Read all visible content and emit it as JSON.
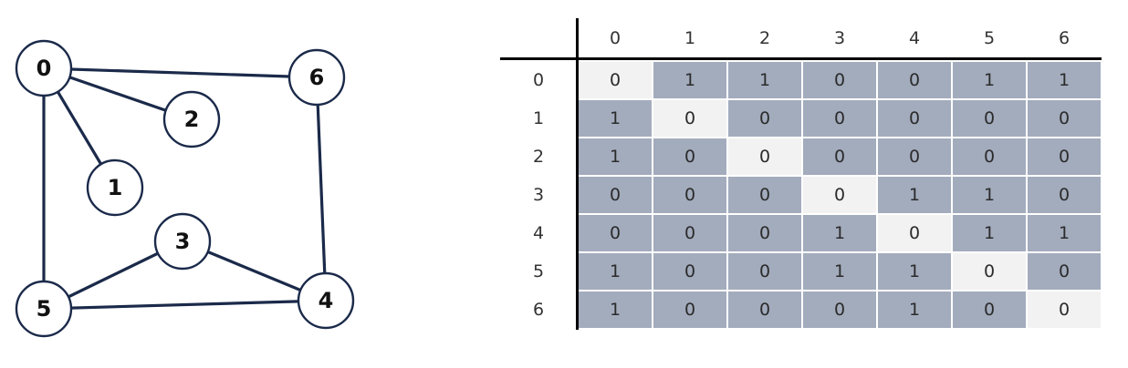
{
  "graph": {
    "nodes": [
      "0",
      "1",
      "2",
      "3",
      "4",
      "5",
      "6"
    ],
    "edges": [
      [
        "0",
        "6"
      ],
      [
        "0",
        "2"
      ],
      [
        "0",
        "1"
      ],
      [
        "0",
        "5"
      ],
      [
        "6",
        "4"
      ],
      [
        "3",
        "5"
      ],
      [
        "3",
        "4"
      ],
      [
        "5",
        "4"
      ]
    ],
    "colors": {
      "edge": "#1b2a4a",
      "node_fill": "#ffffff"
    }
  },
  "matrix": {
    "col_headers": [
      "0",
      "1",
      "2",
      "3",
      "4",
      "5",
      "6"
    ],
    "row_headers": [
      "0",
      "1",
      "2",
      "3",
      "4",
      "5",
      "6"
    ],
    "values": [
      [
        "0",
        "1",
        "1",
        "0",
        "0",
        "1",
        "1"
      ],
      [
        "1",
        "0",
        "0",
        "0",
        "0",
        "0",
        "0"
      ],
      [
        "1",
        "0",
        "0",
        "0",
        "0",
        "0",
        "0"
      ],
      [
        "0",
        "0",
        "0",
        "0",
        "1",
        "1",
        "0"
      ],
      [
        "0",
        "0",
        "0",
        "1",
        "0",
        "1",
        "1"
      ],
      [
        "1",
        "0",
        "0",
        "1",
        "1",
        "0",
        "0"
      ],
      [
        "1",
        "0",
        "0",
        "0",
        "1",
        "0",
        "0"
      ]
    ],
    "colors": {
      "diagonal_cell": "#f2f2f2",
      "off_diagonal_cell": "#a3acbd",
      "grid_line": "#ffffff",
      "rule": "#000000"
    }
  }
}
